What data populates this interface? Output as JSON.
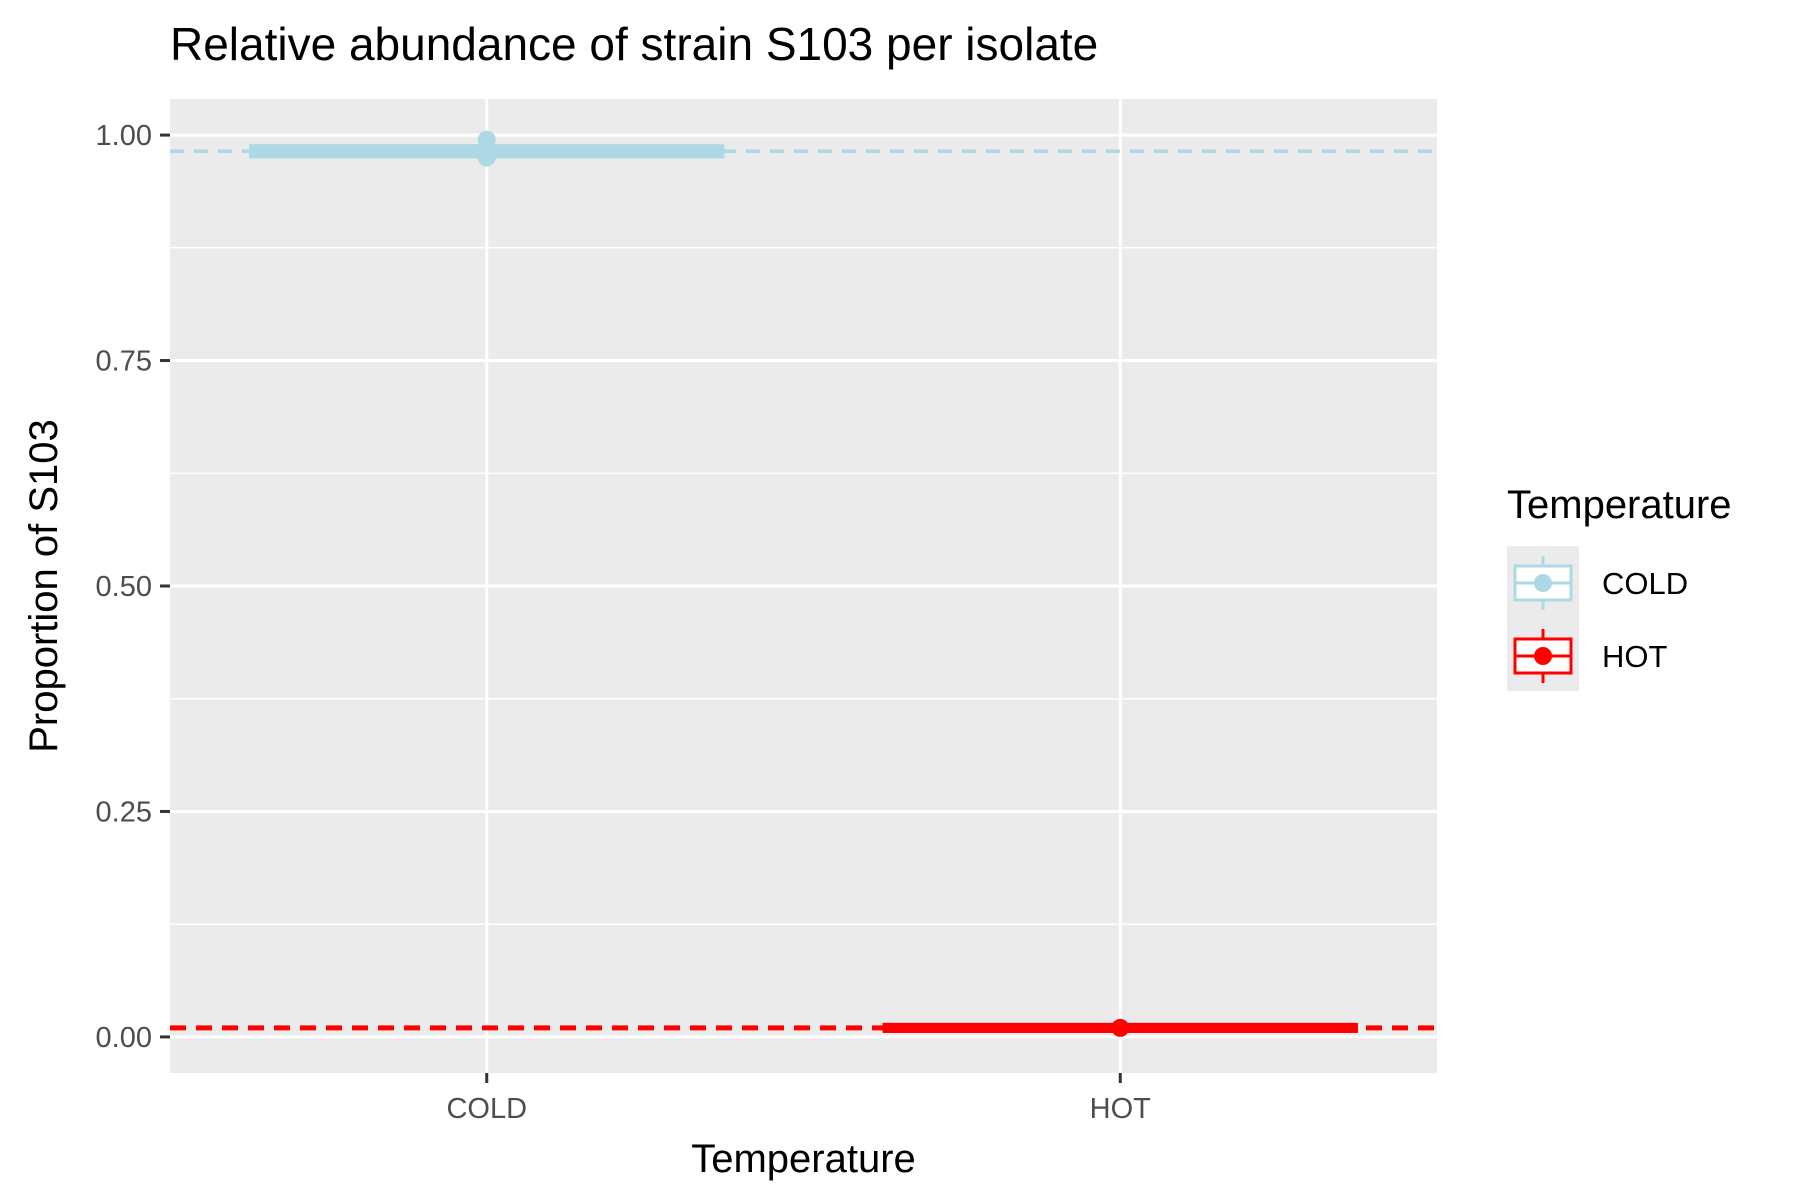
{
  "chart_data": {
    "type": "boxplot",
    "title": "Relative abundance of strain S103 per isolate",
    "xlabel": "Temperature",
    "ylabel": "Proportion of S103",
    "categories": [
      "COLD",
      "HOT"
    ],
    "ylim": [
      -0.04,
      1.04
    ],
    "yticks": [
      0.0,
      0.25,
      0.5,
      0.75,
      1.0
    ],
    "ytick_labels": [
      "0.00",
      "0.25",
      "0.50",
      "0.75",
      "1.00"
    ],
    "grid": true,
    "legend": {
      "title": "Temperature",
      "position": "right",
      "entries": [
        "COLD",
        "HOT"
      ]
    },
    "series": [
      {
        "name": "COLD",
        "color": "#add8e6",
        "box": {
          "min": 0.982,
          "q1": 0.982,
          "median": 0.982,
          "q3": 0.982,
          "max": 0.982
        },
        "points": [
          0.995,
          0.983,
          0.975
        ],
        "reference_line": 0.982
      },
      {
        "name": "HOT",
        "color": "#ff0000",
        "box": {
          "min": 0.01,
          "q1": 0.01,
          "median": 0.01,
          "q3": 0.01,
          "max": 0.01
        },
        "points": [
          0.01
        ],
        "reference_line": 0.01
      }
    ]
  }
}
